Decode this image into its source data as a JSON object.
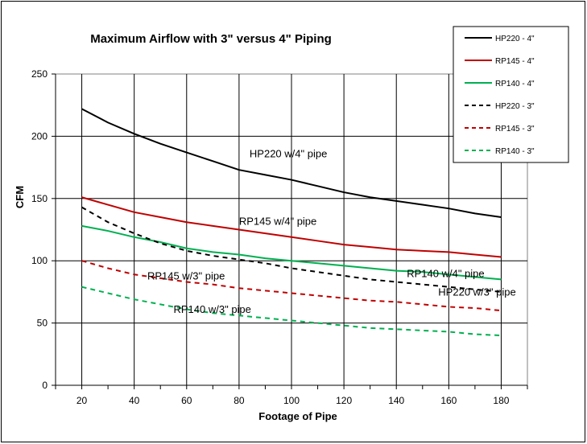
{
  "chart_data": {
    "type": "line",
    "title": "Maximum Airflow with 3\" versus 4\" Piping",
    "xlabel": "Footage of Pipe",
    "ylabel": "CFM",
    "xlim": [
      10,
      190
    ],
    "ylim": [
      0,
      250
    ],
    "x_ticks": [
      20,
      40,
      60,
      80,
      100,
      120,
      140,
      160,
      180
    ],
    "y_ticks": [
      0,
      50,
      100,
      150,
      200,
      250
    ],
    "grid": "both",
    "legend_position": "top-right",
    "series": [
      {
        "name": "HP220 - 4\"",
        "color": "#000000",
        "style": "solid",
        "x": [
          20,
          30,
          40,
          50,
          60,
          70,
          80,
          90,
          100,
          110,
          120,
          130,
          140,
          150,
          160,
          170,
          180
        ],
        "y": [
          222,
          211,
          202,
          194,
          187,
          180,
          173,
          169,
          165,
          160,
          155,
          151,
          148,
          145,
          142,
          138,
          135
        ]
      },
      {
        "name": "RP145 - 4\"",
        "color": "#c00000",
        "style": "solid",
        "x": [
          20,
          30,
          40,
          50,
          60,
          70,
          80,
          90,
          100,
          110,
          120,
          130,
          140,
          150,
          160,
          170,
          180
        ],
        "y": [
          151,
          145,
          139,
          135,
          131,
          128,
          125,
          122,
          119,
          116,
          113,
          111,
          109,
          108,
          107,
          105,
          103
        ]
      },
      {
        "name": "RP140 - 4\"",
        "color": "#00b050",
        "style": "solid",
        "x": [
          20,
          30,
          40,
          50,
          60,
          70,
          80,
          90,
          100,
          110,
          120,
          130,
          140,
          150,
          160,
          170,
          180
        ],
        "y": [
          128,
          124,
          119,
          115,
          110,
          107,
          105,
          102,
          100,
          98,
          96,
          94,
          92,
          91,
          89,
          87,
          85
        ]
      },
      {
        "name": "HP220 - 3\"",
        "color": "#000000",
        "style": "dashed",
        "x": [
          20,
          30,
          40,
          50,
          60,
          70,
          80,
          90,
          100,
          110,
          120,
          130,
          140,
          150,
          160,
          170,
          180
        ],
        "y": [
          143,
          131,
          122,
          114,
          108,
          104,
          101,
          98,
          94,
          91,
          88,
          85,
          83,
          81,
          79,
          77,
          75
        ]
      },
      {
        "name": "RP145 - 3\"",
        "color": "#c00000",
        "style": "dashed",
        "x": [
          20,
          30,
          40,
          50,
          60,
          70,
          80,
          90,
          100,
          110,
          120,
          130,
          140,
          150,
          160,
          170,
          180
        ],
        "y": [
          100,
          94,
          89,
          86,
          83,
          81,
          78,
          76,
          74,
          72,
          70,
          68,
          67,
          65,
          63,
          62,
          60
        ]
      },
      {
        "name": "RP140 - 3\"",
        "color": "#00b050",
        "style": "dashed",
        "x": [
          20,
          30,
          40,
          50,
          60,
          70,
          80,
          90,
          100,
          110,
          120,
          130,
          140,
          150,
          160,
          170,
          180
        ],
        "y": [
          79,
          74,
          69,
          65,
          61,
          58,
          56,
          54,
          52,
          50,
          48,
          46,
          45,
          44,
          43,
          41,
          40
        ]
      }
    ],
    "annotations": [
      {
        "text": "HP220 w/4\" pipe",
        "x": 84,
        "y": 183
      },
      {
        "text": "RP145 w/4\" pipe",
        "x": 80,
        "y": 129
      },
      {
        "text": "RP140 w/4\" pipe",
        "x": 144,
        "y": 87
      },
      {
        "text": "RP145 w/3\" pipe",
        "x": 45,
        "y": 85
      },
      {
        "text": "HP220 w/3\" pipe",
        "x": 156,
        "y": 72
      },
      {
        "text": "RP140 w/3\" pipe",
        "x": 55,
        "y": 58
      }
    ]
  }
}
